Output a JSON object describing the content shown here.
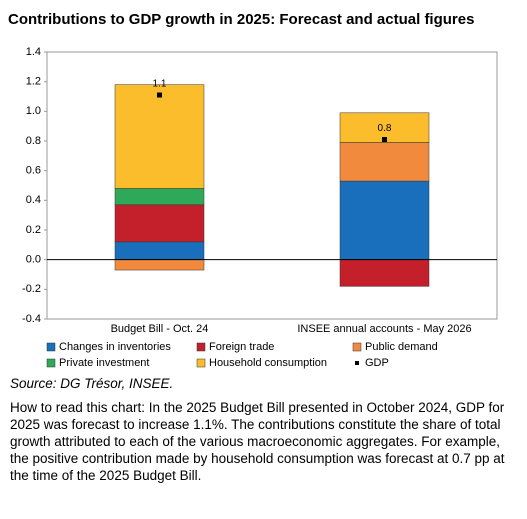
{
  "chart_data": {
    "type": "stacked-bar",
    "title": "Contributions to GDP growth in 2025: Forecast and actual figures",
    "categories": [
      "Budget Bill - Oct. 24",
      "INSEE annual accounts - May 2026"
    ],
    "series": [
      {
        "name": "Changes in inventories",
        "color": "#1a6fbd",
        "values": [
          0.12,
          0.53
        ]
      },
      {
        "name": "Foreign trade",
        "color": "#c4202b",
        "values": [
          0.25,
          -0.18
        ]
      },
      {
        "name": "Public demand",
        "color": "#f28a3e",
        "values": [
          -0.07,
          0.26
        ]
      },
      {
        "name": "Private investment",
        "color": "#2ea95a",
        "values": [
          0.11,
          0
        ]
      },
      {
        "name": "Household consumption",
        "color": "#fbbd2c",
        "values": [
          0.7,
          0.2
        ]
      }
    ],
    "marker_series": {
      "name": "GDP",
      "color": "#000000",
      "values": [
        1.11,
        0.81
      ],
      "value_labels": [
        "1.1",
        "0.8"
      ]
    },
    "ylim": [
      -0.4,
      1.4
    ],
    "yticks": [
      {
        "value": -0.4,
        "label": "-0.4"
      },
      {
        "value": -0.2,
        "label": "-0.2"
      },
      {
        "value": 0,
        "label": "0.0"
      },
      {
        "value": 0.2,
        "label": "0.2"
      },
      {
        "value": 0.4,
        "label": "0.4"
      },
      {
        "value": 0.6,
        "label": "0.6"
      },
      {
        "value": 0.8,
        "label": "0.8"
      },
      {
        "value": 1,
        "label": "1.0"
      },
      {
        "value": 1.2,
        "label": "1.2"
      },
      {
        "value": 1.4,
        "label": "1.4"
      }
    ],
    "grid": false,
    "source": "Source: DG Trésor, INSEE.",
    "note": "How to read this chart: In the 2025 Budget Bill presented in October 2024, GDP for 2025 was forecast to increase 1.1%. The contributions constitute the share of total growth attributed to each of the various macroeconomic aggregates. For example, the positive contribution made by household consumption was forecast at 0.7 pp at the time of the 2025 Budget Bill."
  }
}
